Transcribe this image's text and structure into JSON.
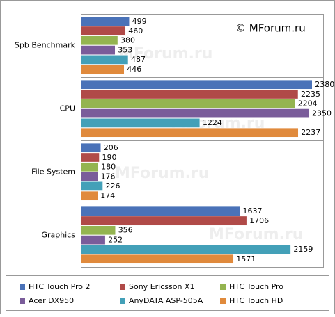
{
  "chart_data": {
    "type": "hbar",
    "watermark": "© MForum.ru",
    "faint_watermark": "MForum.ru",
    "categories": [
      "Spb Benchmark",
      "CPU",
      "File System",
      "Graphics"
    ],
    "series": [
      {
        "name": "HTC Touch Pro 2",
        "color": "#4a72b8",
        "values": [
          499,
          2380,
          206,
          1637
        ]
      },
      {
        "name": "Sony Ericsson X1",
        "color": "#b04a48",
        "values": [
          460,
          2235,
          190,
          1706
        ]
      },
      {
        "name": "HTC Touch Pro",
        "color": "#94b450",
        "values": [
          380,
          2204,
          180,
          356
        ]
      },
      {
        "name": "Acer DX950",
        "color": "#7a5c9a",
        "values": [
          353,
          2350,
          176,
          252
        ]
      },
      {
        "name": "AnyDATA ASP-505A",
        "color": "#43a0b8",
        "values": [
          487,
          1224,
          226,
          2159
        ]
      },
      {
        "name": "HTC Touch HD",
        "color": "#e08a3c",
        "values": [
          446,
          2237,
          174,
          1571
        ]
      }
    ],
    "xlim": [
      0,
      2500
    ]
  }
}
